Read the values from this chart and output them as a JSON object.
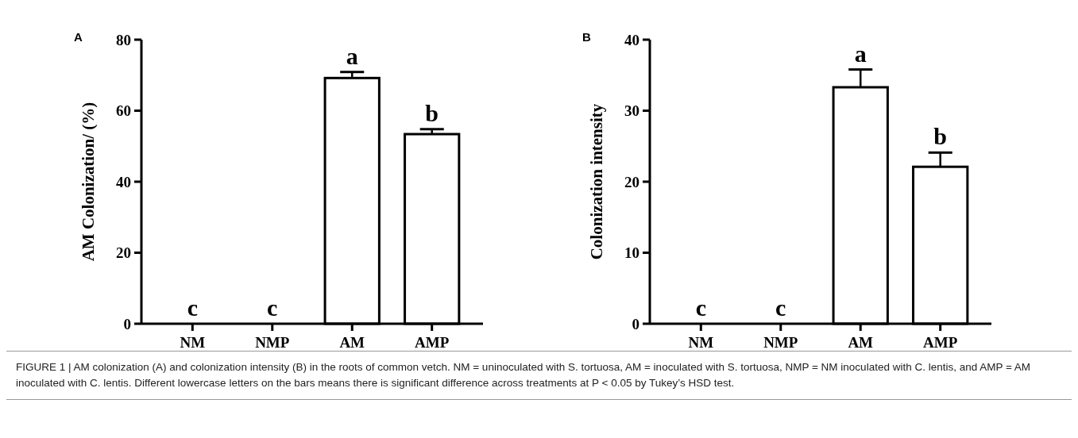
{
  "chart_data": [
    {
      "type": "bar",
      "title": "A",
      "ylabel": "AM Colonization/ (%)",
      "categories": [
        "NM",
        "NMP",
        "AM",
        "AMP"
      ],
      "values": [
        0,
        0,
        69.2,
        53.4
      ],
      "errors": [
        null,
        null,
        1.7,
        1.4
      ],
      "color": "#000000",
      "ylim": [
        0,
        80
      ],
      "yticks": [
        0,
        20,
        40,
        60,
        80
      ],
      "grid": false,
      "annotations": [
        {
          "text": "c",
          "x": "NM",
          "y": 0
        },
        {
          "text": "c",
          "x": "NMP",
          "y": 0
        },
        {
          "text": "a",
          "x": "AM",
          "y": 70.9
        },
        {
          "text": "b",
          "x": "AMP",
          "y": 54.8
        },
        "FIGURE 1 | AM colonization (A) and colonization intensity (B) in the roots of common vetch. NM = uninoculated with S. tortuosa, AM = inoculated with S. tortuosa, NMP = NM inoculated with C. lentis, and AMP = AM inoculated with C. lentis. Different lowercase letters on the bars means there is significant difference across treatments at P < 0.05 by Tukey’s HSD test."
      ]
    },
    {
      "type": "bar",
      "title": "B",
      "ylabel": "Colonization intensity",
      "categories": [
        "NM",
        "NMP",
        "AM",
        "AMP"
      ],
      "values": [
        0,
        0,
        33.3,
        22.1
      ],
      "errors": [
        null,
        null,
        2.5,
        2.0
      ],
      "color": "#000000",
      "ylim": [
        0,
        40
      ],
      "yticks": [
        0,
        10,
        20,
        30,
        40
      ],
      "grid": false,
      "annotations": [
        {
          "text": "c",
          "x": "NM",
          "y": 0
        },
        {
          "text": "c",
          "x": "NMP",
          "y": 0
        },
        {
          "text": "a",
          "x": "AM",
          "y": 35.8
        },
        {
          "text": "b",
          "x": "AMP",
          "y": 24.1
        }
      ]
    }
  ]
}
